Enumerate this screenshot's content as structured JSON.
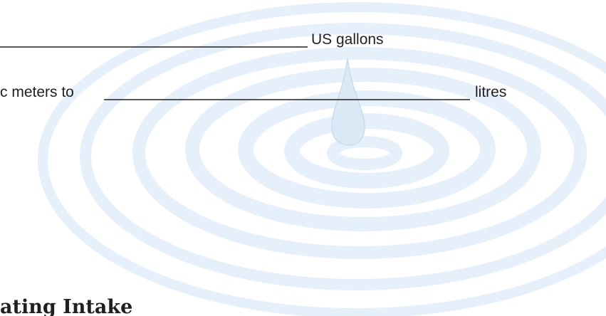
{
  "rows": [
    {
      "suffix": "US gallons"
    },
    {
      "prefix": "c meters to",
      "suffix": "litres"
    }
  ],
  "heading": "ating Intake"
}
